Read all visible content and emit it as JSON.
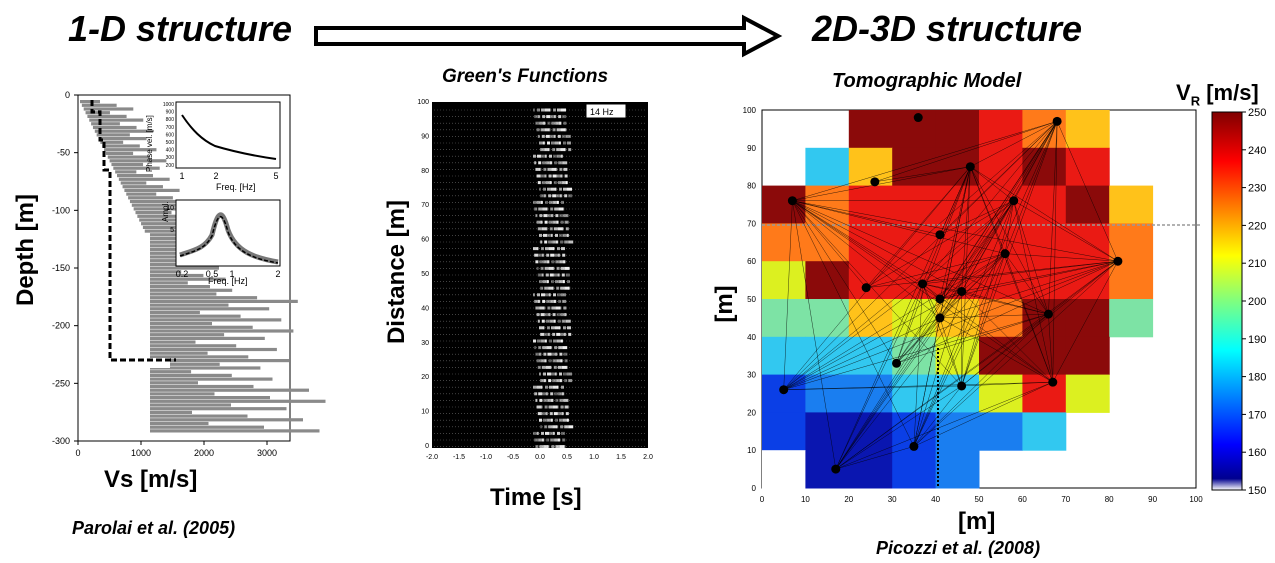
{
  "headers": {
    "left": "1-D structure",
    "right": "2D-3D structure"
  },
  "panel1": {
    "ylabel": "Depth [m]",
    "xlabel": "Vs [m/s]",
    "citation": "Parolai et al.  (2005)",
    "xticks": [
      "0",
      "1000",
      "2000",
      "3000"
    ],
    "yticks": [
      "0",
      "-50",
      "-100",
      "-150",
      "-200",
      "-250",
      "-300"
    ],
    "inset_top": {
      "ylabel": "Phase vel. [m/s]",
      "xlabel": "Freq. [Hz]",
      "yticks": [
        "1000",
        "900",
        "800",
        "700",
        "600",
        "500",
        "400",
        "300",
        "200"
      ],
      "xticks": [
        "1",
        "2",
        "5"
      ]
    },
    "inset_bottom": {
      "ylabel": "Ampl.",
      "xlabel": "Freq. [Hz]",
      "yticks": [
        "10",
        "5"
      ],
      "xticks": [
        "0.2",
        "0.5",
        "1",
        "2"
      ]
    }
  },
  "panel2": {
    "title": "Green's Functions",
    "ylabel": "Distance [m]",
    "xlabel": "Time [s]",
    "badge": "14 Hz",
    "xticks": [
      "-2.0",
      "-1.5",
      "-1.0",
      "-0.5",
      "0.0",
      "0.5",
      "1.0",
      "1.5",
      "2.0"
    ],
    "yticks": [
      "100",
      "90",
      "80",
      "70",
      "60",
      "50",
      "40",
      "30",
      "20",
      "10",
      "0"
    ]
  },
  "panel3": {
    "title": "Tomographic  Model",
    "ylabel": "[m]",
    "xlabel": "[m]",
    "citation": "Picozzi et al.  (2008)",
    "xticks": [
      "0",
      "10",
      "20",
      "30",
      "40",
      "50",
      "60",
      "70",
      "80",
      "90",
      "100"
    ],
    "yticks": [
      "100",
      "90",
      "80",
      "70",
      "60",
      "50",
      "40",
      "30",
      "20",
      "10",
      "0"
    ],
    "colorbar": {
      "label_main": "V",
      "label_sub": "R",
      "label_unit": " [m/s]",
      "min": 150,
      "max": 250,
      "ticks": [
        "250",
        "240",
        "230",
        "220",
        "210",
        "200",
        "190",
        "180",
        "170",
        "160",
        "150"
      ]
    }
  },
  "colors": {
    "cell_low": "#0b1fd0",
    "cell_high": "#8b0a0a",
    "profile_gray": "#8a8a8a"
  }
}
